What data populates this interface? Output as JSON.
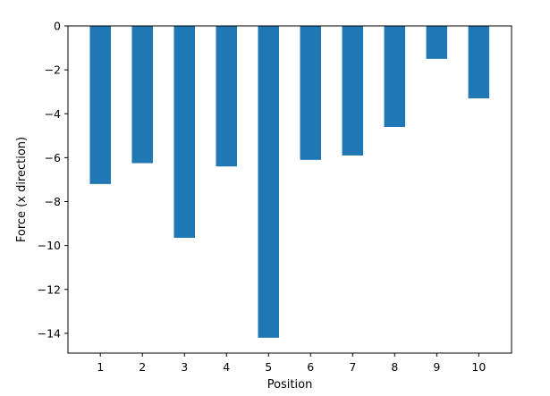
{
  "chart_data": {
    "type": "bar",
    "categories": [
      "1",
      "2",
      "3",
      "4",
      "5",
      "6",
      "7",
      "8",
      "9",
      "10"
    ],
    "values": [
      -7.2,
      -6.25,
      -9.65,
      -6.4,
      -14.2,
      -6.1,
      -5.9,
      -4.6,
      -1.5,
      -3.3
    ],
    "title": "",
    "xlabel": "Position",
    "ylabel": "Force (x direction)",
    "ylim": [
      -14.9,
      0
    ],
    "yticks": [
      0,
      -2,
      -4,
      -6,
      -8,
      -10,
      -12,
      -14
    ],
    "ytick_labels": [
      "0",
      "−2",
      "−4",
      "−6",
      "−8",
      "−10",
      "−12",
      "−14"
    ],
    "grid": false,
    "bar_color": "#1f77b4"
  }
}
